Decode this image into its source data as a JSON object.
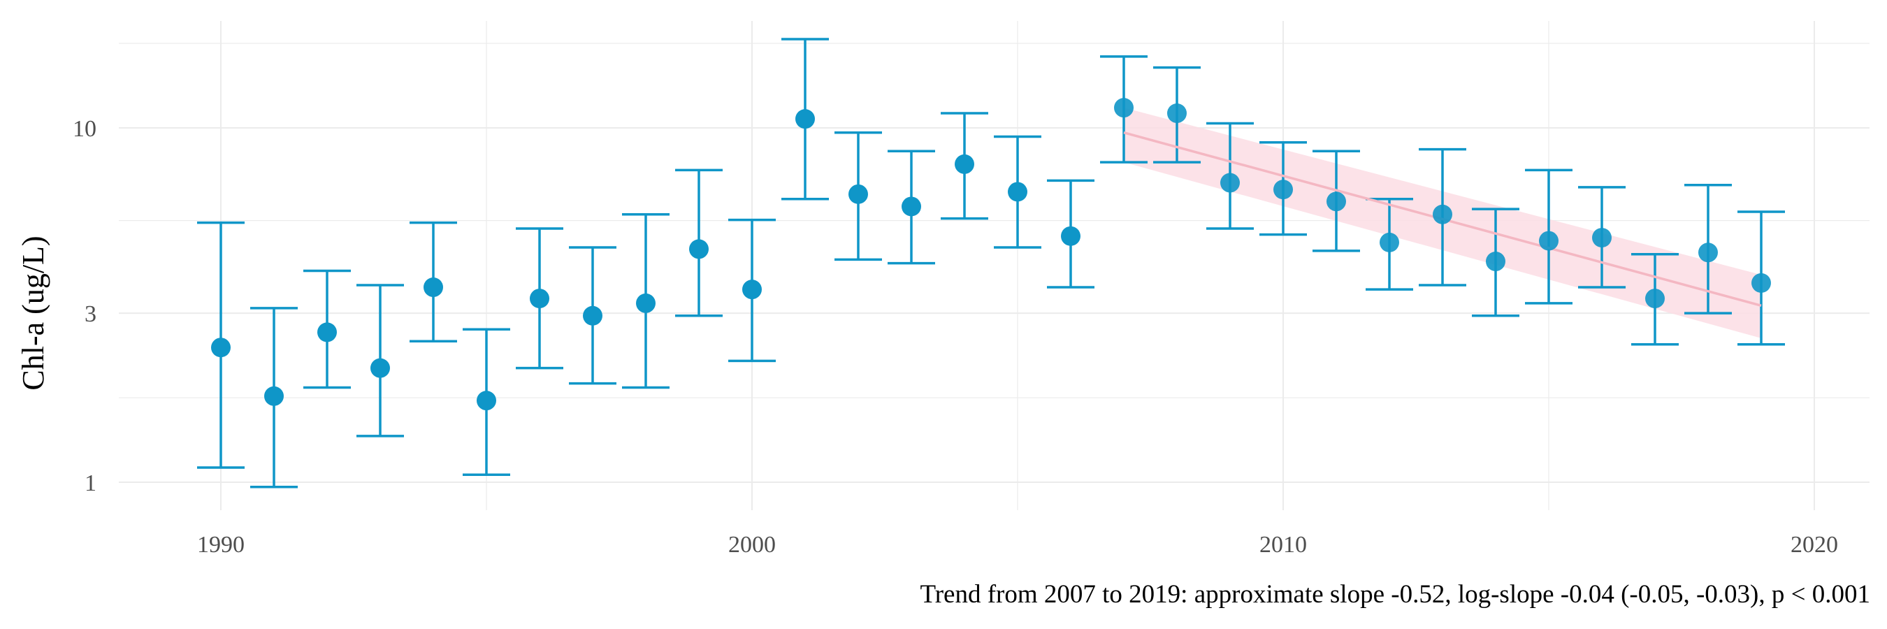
{
  "chart_data": {
    "type": "scatter",
    "ylabel": "Chl-a (ug/L)",
    "xlabel": "",
    "caption": "Trend from 2007 to 2019: approximate slope -0.52, log-slope -0.04 (-0.05, -0.03), p < 0.001",
    "y_scale": "log",
    "xlim": [
      1987.9,
      2020.6
    ],
    "ylim": [
      0.8,
      20
    ],
    "x_ticks": [
      1990,
      2000,
      2010,
      2020
    ],
    "y_ticks": [
      1,
      3,
      10
    ],
    "grid": true,
    "colors": {
      "points": "#0f96c8",
      "trend_line": "#f4b7c2",
      "trend_band": "#fcdde4",
      "grid": "#ebebeb"
    },
    "points": [
      {
        "year": 1990,
        "mean": 2.4,
        "lower": 1.1,
        "upper": 5.4
      },
      {
        "year": 1991,
        "mean": 1.75,
        "lower": 0.97,
        "upper": 3.1
      },
      {
        "year": 1992,
        "mean": 2.65,
        "lower": 1.85,
        "upper": 3.95
      },
      {
        "year": 1993,
        "mean": 2.1,
        "lower": 1.35,
        "upper": 3.6
      },
      {
        "year": 1994,
        "mean": 3.55,
        "lower": 2.5,
        "upper": 5.4
      },
      {
        "year": 1995,
        "mean": 1.7,
        "lower": 1.05,
        "upper": 2.7
      },
      {
        "year": 1996,
        "mean": 3.3,
        "lower": 2.1,
        "upper": 5.2
      },
      {
        "year": 1997,
        "mean": 2.95,
        "lower": 1.9,
        "upper": 4.6
      },
      {
        "year": 1998,
        "mean": 3.2,
        "lower": 1.85,
        "upper": 5.7
      },
      {
        "year": 1999,
        "mean": 4.55,
        "lower": 2.95,
        "upper": 7.6
      },
      {
        "year": 2000,
        "mean": 3.5,
        "lower": 2.2,
        "upper": 5.5
      },
      {
        "year": 2001,
        "mean": 10.6,
        "lower": 6.3,
        "upper": 17.8
      },
      {
        "year": 2002,
        "mean": 6.5,
        "lower": 4.25,
        "upper": 9.7
      },
      {
        "year": 2003,
        "mean": 6.0,
        "lower": 4.15,
        "upper": 8.6
      },
      {
        "year": 2004,
        "mean": 7.9,
        "lower": 5.55,
        "upper": 11.0
      },
      {
        "year": 2005,
        "mean": 6.6,
        "lower": 4.6,
        "upper": 9.45
      },
      {
        "year": 2006,
        "mean": 4.95,
        "lower": 3.55,
        "upper": 7.1
      },
      {
        "year": 2007,
        "mean": 11.4,
        "lower": 8.0,
        "upper": 15.9
      },
      {
        "year": 2008,
        "mean": 11.0,
        "lower": 8.0,
        "upper": 14.8
      },
      {
        "year": 2009,
        "mean": 7.0,
        "lower": 5.2,
        "upper": 10.3
      },
      {
        "year": 2010,
        "mean": 6.7,
        "lower": 5.0,
        "upper": 9.1
      },
      {
        "year": 2011,
        "mean": 6.2,
        "lower": 4.5,
        "upper": 8.6
      },
      {
        "year": 2012,
        "mean": 4.75,
        "lower": 3.5,
        "upper": 6.3
      },
      {
        "year": 2013,
        "mean": 5.7,
        "lower": 3.6,
        "upper": 8.7
      },
      {
        "year": 2014,
        "mean": 4.2,
        "lower": 2.95,
        "upper": 5.9
      },
      {
        "year": 2015,
        "mean": 4.8,
        "lower": 3.2,
        "upper": 7.6
      },
      {
        "year": 2016,
        "mean": 4.9,
        "lower": 3.55,
        "upper": 6.8
      },
      {
        "year": 2017,
        "mean": 3.3,
        "lower": 2.45,
        "upper": 4.4
      },
      {
        "year": 2018,
        "mean": 4.45,
        "lower": 3.0,
        "upper": 6.9
      },
      {
        "year": 2019,
        "mean": 3.65,
        "lower": 2.45,
        "upper": 5.8
      }
    ],
    "trend": {
      "from": 2007,
      "to": 2019,
      "line": [
        {
          "year": 2007,
          "value": 9.7
        },
        {
          "year": 2019,
          "value": 3.15
        }
      ],
      "band_lower": [
        {
          "year": 2007,
          "value": 8.0
        },
        {
          "year": 2019,
          "value": 2.55
        }
      ],
      "band_upper": [
        {
          "year": 2007,
          "value": 11.4
        },
        {
          "year": 2019,
          "value": 3.85
        }
      ]
    }
  }
}
